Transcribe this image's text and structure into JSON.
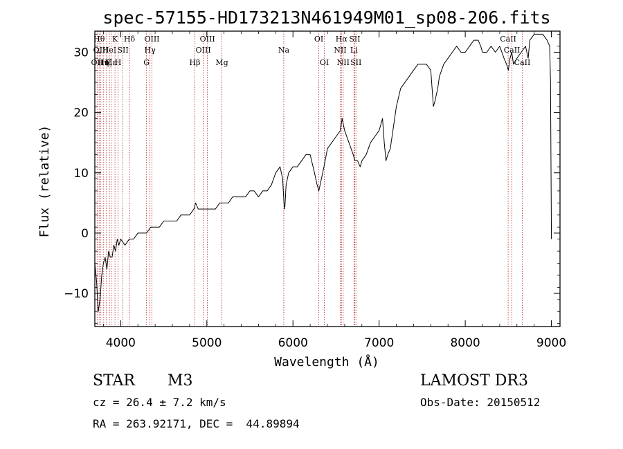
{
  "chart_data": {
    "type": "line",
    "title": "spec-57155-HD173213N461949M01_sp08-206.fits",
    "xlabel": "Wavelength (Å)",
    "ylabel": "Flux (relative)",
    "xlim": [
      3700,
      9100
    ],
    "ylim": [
      -15.5,
      33.5
    ],
    "xticks": [
      4000,
      5000,
      6000,
      7000,
      8000,
      9000
    ],
    "yticks": [
      -10,
      0,
      10,
      20,
      30
    ],
    "xtick_labels": [
      "4000",
      "5000",
      "6000",
      "7000",
      "8000",
      "9000"
    ],
    "ytick_labels": [
      "−10",
      "0",
      "10",
      "20",
      "30"
    ],
    "line_color": "#000000",
    "marker_color": "#b22222",
    "series": [
      {
        "name": "flux",
        "x": [
          3700,
          3720,
          3740,
          3760,
          3780,
          3800,
          3820,
          3840,
          3860,
          3880,
          3900,
          3920,
          3940,
          3960,
          3980,
          4000,
          4050,
          4100,
          4150,
          4200,
          4250,
          4300,
          4350,
          4400,
          4450,
          4500,
          4550,
          4600,
          4650,
          4700,
          4750,
          4800,
          4850,
          4870,
          4900,
          4950,
          5000,
          5050,
          5100,
          5150,
          5200,
          5250,
          5300,
          5350,
          5400,
          5450,
          5500,
          5550,
          5600,
          5650,
          5700,
          5750,
          5800,
          5850,
          5880,
          5895,
          5905,
          5920,
          5950,
          6000,
          6050,
          6100,
          6150,
          6200,
          6250,
          6280,
          6300,
          6330,
          6360,
          6400,
          6450,
          6500,
          6550,
          6570,
          6600,
          6650,
          6700,
          6720,
          6750,
          6780,
          6800,
          6850,
          6900,
          6950,
          7000,
          7040,
          7060,
          7080,
          7100,
          7130,
          7160,
          7200,
          7250,
          7300,
          7350,
          7400,
          7450,
          7500,
          7550,
          7600,
          7630,
          7650,
          7680,
          7700,
          7750,
          7800,
          7850,
          7900,
          7950,
          8000,
          8050,
          8100,
          8150,
          8180,
          8200,
          8250,
          8300,
          8350,
          8400,
          8450,
          8480,
          8500,
          8520,
          8540,
          8560,
          8600,
          8650,
          8700,
          8730,
          8750,
          8800,
          8850,
          8900,
          8950,
          8980,
          8990,
          9000
        ],
        "y": [
          -5,
          -8,
          -13,
          -11,
          -7,
          -5,
          -4,
          -6,
          -3,
          -4,
          -4,
          -2,
          -3,
          -1,
          -2,
          -1,
          -2,
          -1,
          -1,
          0,
          0,
          0,
          1,
          1,
          1,
          2,
          2,
          2,
          2,
          3,
          3,
          3,
          4,
          5,
          4,
          4,
          4,
          4,
          4,
          5,
          5,
          5,
          6,
          6,
          6,
          6,
          7,
          7,
          6,
          7,
          7,
          8,
          10,
          11,
          9,
          5,
          4,
          8,
          10,
          11,
          11,
          12,
          13,
          13,
          10,
          8,
          7,
          9,
          11,
          14,
          15,
          16,
          17,
          19,
          17,
          15,
          13,
          12,
          12,
          11,
          12,
          13,
          15,
          16,
          17,
          19,
          15,
          12,
          13,
          14,
          17,
          21,
          24,
          25,
          26,
          27,
          28,
          28,
          28,
          27,
          21,
          22,
          24,
          26,
          28,
          29,
          30,
          31,
          30,
          30,
          31,
          32,
          32,
          31,
          30,
          30,
          31,
          30,
          31,
          29,
          28,
          27,
          29,
          30,
          28,
          29,
          30,
          31,
          29,
          32,
          33,
          33,
          33,
          32,
          31,
          25,
          -1
        ]
      }
    ],
    "line_markers": [
      {
        "x": 3727,
        "label": "OII",
        "row": 2
      },
      {
        "x": 3750,
        "label": "Hθ",
        "row": 0
      },
      {
        "x": 3770,
        "label": "OIII",
        "row": 1
      },
      {
        "x": 3798,
        "label": "Hη",
        "row": 2
      },
      {
        "x": 3835,
        "label": "Hζ",
        "row": 2
      },
      {
        "x": 3869,
        "label": "HeI",
        "row": 1
      },
      {
        "x": 3889,
        "label": "Hε",
        "row": 2
      },
      {
        "x": 3934,
        "label": "K",
        "row": 0
      },
      {
        "x": 3970,
        "label": "H",
        "row": 2
      },
      {
        "x": 4026,
        "label": "SII",
        "row": 1
      },
      {
        "x": 4102,
        "label": "Hδ",
        "row": 0
      },
      {
        "x": 4300,
        "label": "G",
        "row": 2
      },
      {
        "x": 4340,
        "label": "Hγ",
        "row": 1
      },
      {
        "x": 4363,
        "label": "OIII",
        "row": 0
      },
      {
        "x": 4861,
        "label": "Hβ",
        "row": 2
      },
      {
        "x": 4959,
        "label": "OIII",
        "row": 1
      },
      {
        "x": 5007,
        "label": "OIII",
        "row": 0
      },
      {
        "x": 5175,
        "label": "Mg",
        "row": 2
      },
      {
        "x": 5893,
        "label": "Na",
        "row": 1
      },
      {
        "x": 6300,
        "label": "OI",
        "row": 0
      },
      {
        "x": 6364,
        "label": "OI",
        "row": 2
      },
      {
        "x": 6548,
        "label": "NII",
        "row": 1
      },
      {
        "x": 6563,
        "label": "Hα",
        "row": 0
      },
      {
        "x": 6583,
        "label": "NII",
        "row": 2
      },
      {
        "x": 6708,
        "label": "Li",
        "row": 1
      },
      {
        "x": 6717,
        "label": "SII",
        "row": 0
      },
      {
        "x": 6731,
        "label": "SII",
        "row": 2
      },
      {
        "x": 8498,
        "label": "CaII",
        "row": 0
      },
      {
        "x": 8542,
        "label": "CaII",
        "row": 1
      },
      {
        "x": 8662,
        "label": "CaII",
        "row": 2
      }
    ]
  },
  "info": {
    "object_class": "STAR",
    "subclass": "M3",
    "survey": "LAMOST DR3",
    "cz_label": "cz = 26.4 ± 7.2 km/s",
    "obs_date": "Obs-Date: 20150512",
    "coords": "RA = 263.92171, DEC =  44.89894"
  }
}
